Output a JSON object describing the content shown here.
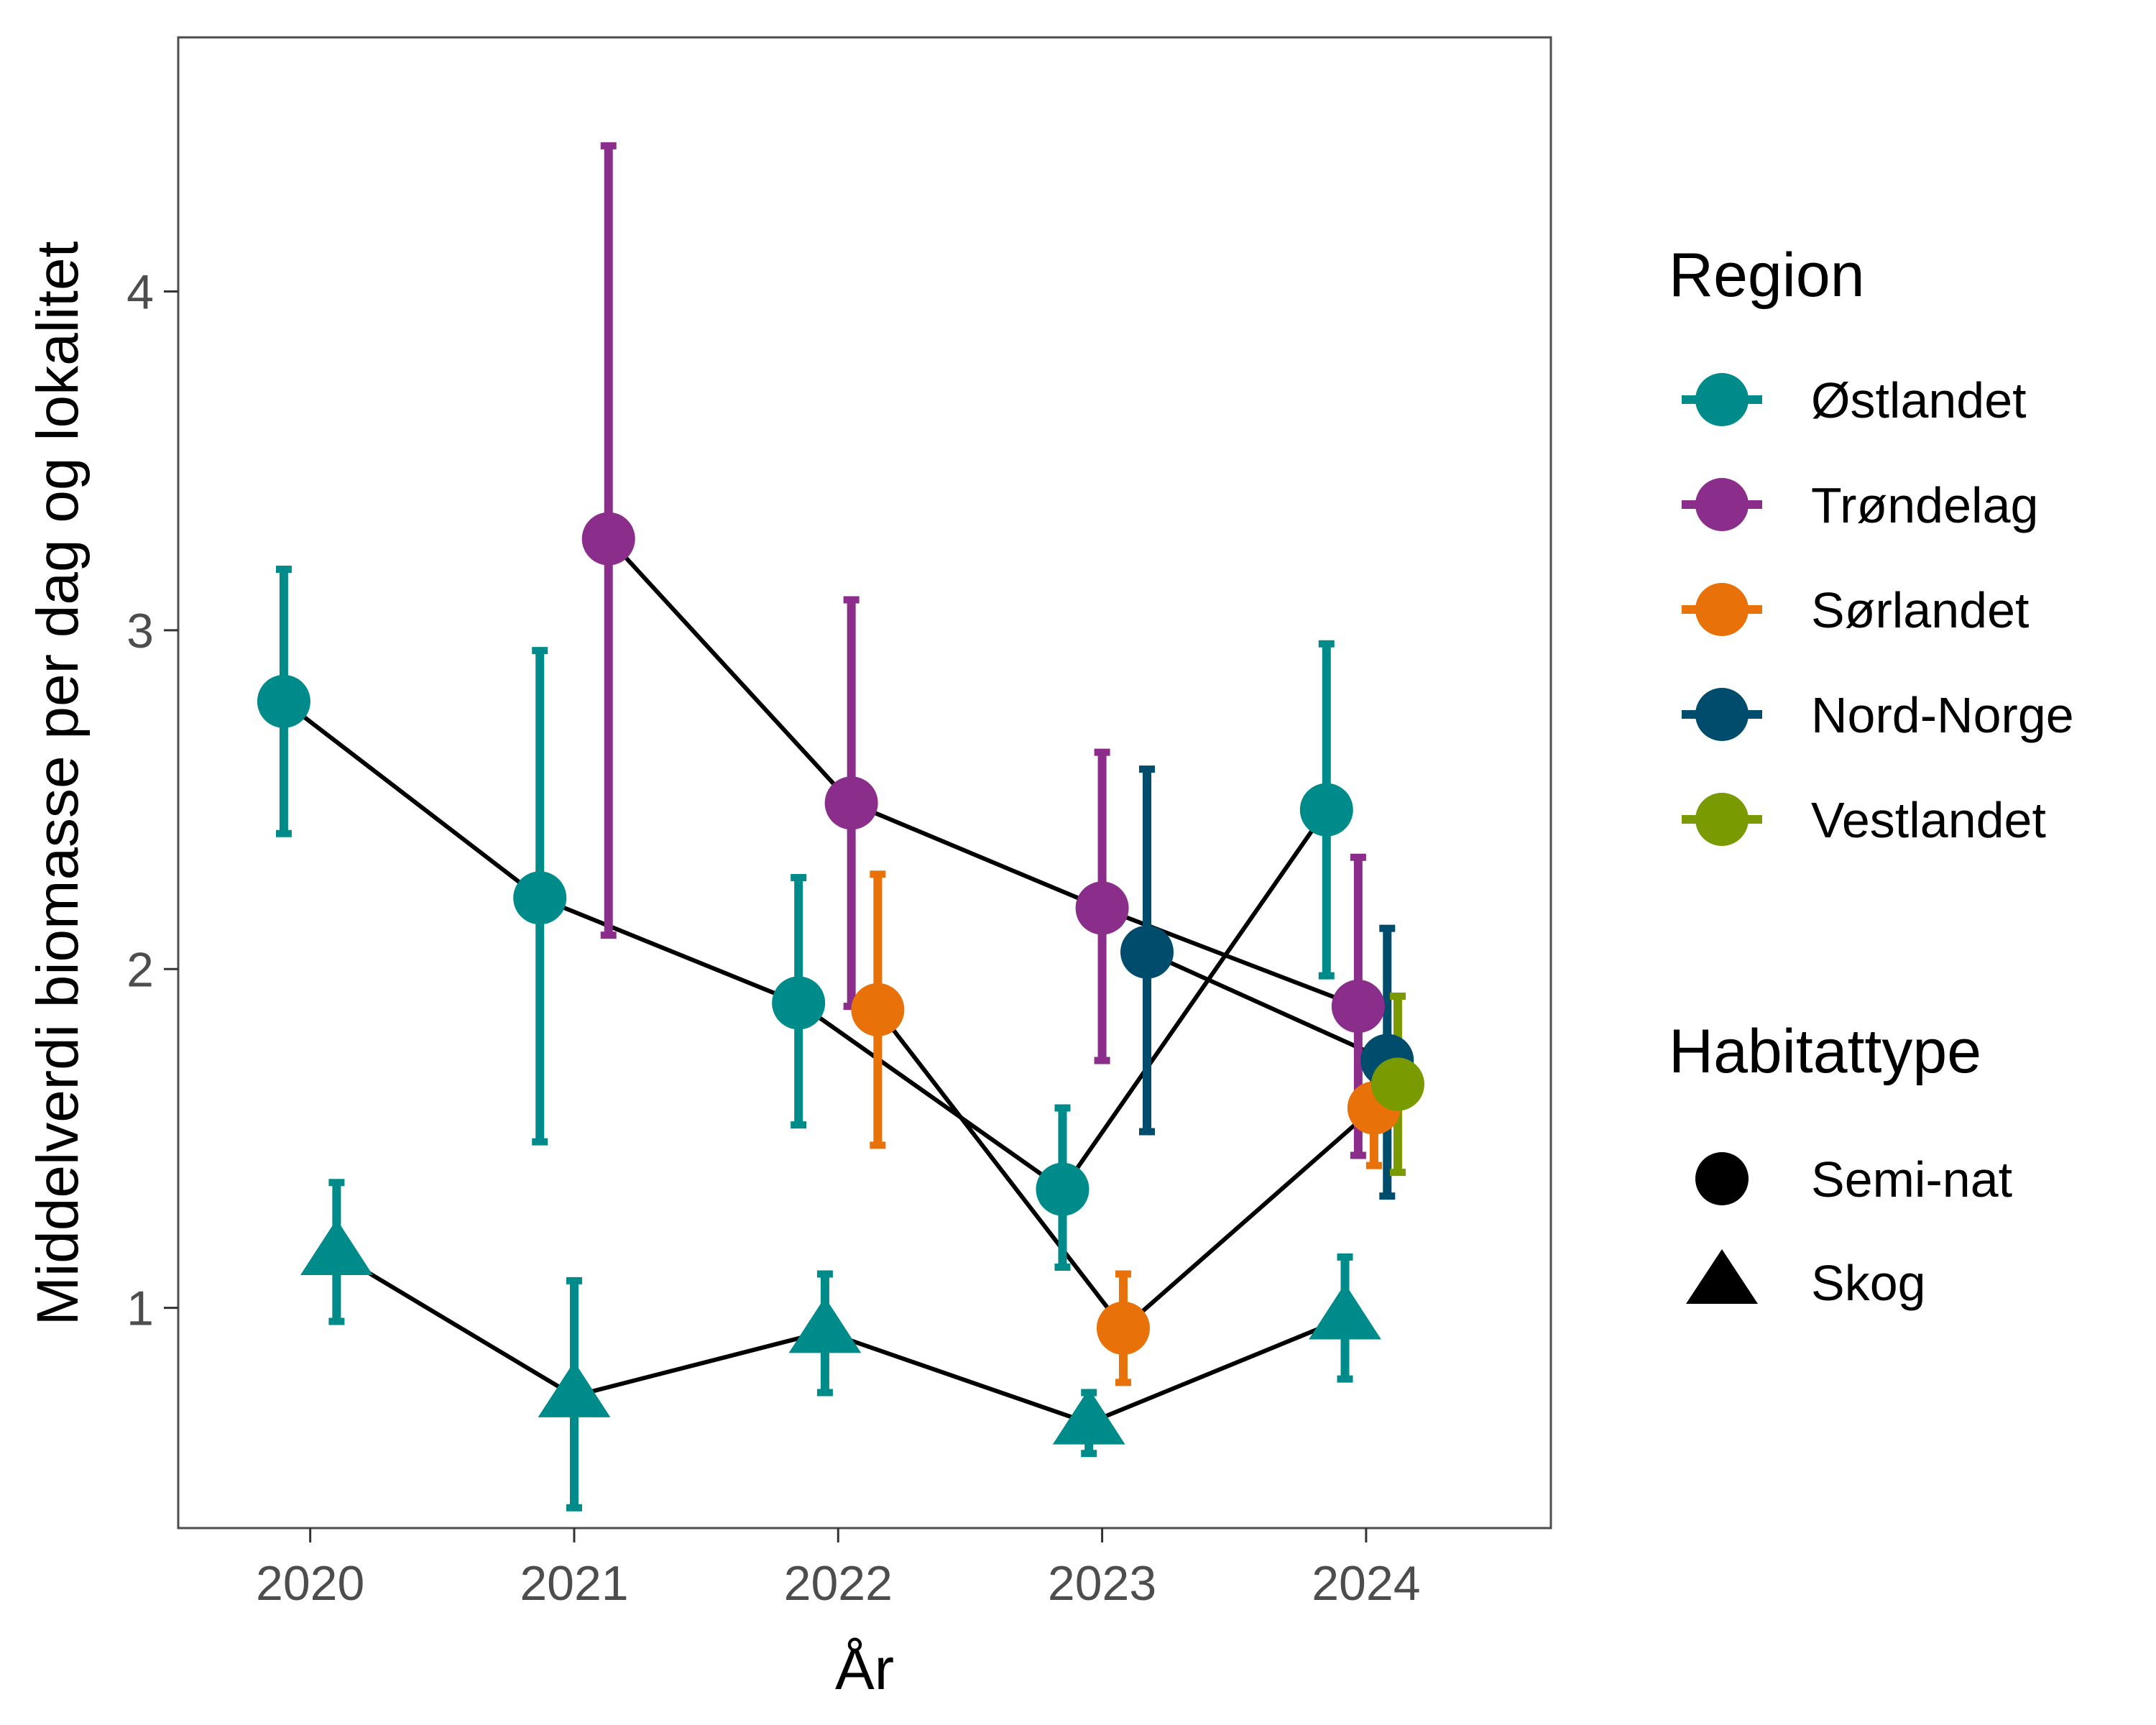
{
  "chart_data": {
    "type": "scatter",
    "xlabel": "År",
    "ylabel": "Middelverdi biomasse per dag og lokalitet",
    "xlim": [
      2019.5,
      2024.7
    ],
    "ylim": [
      0.35,
      4.75
    ],
    "x_ticks": [
      "2020",
      "2021",
      "2022",
      "2023",
      "2024"
    ],
    "y_ticks": [
      "1",
      "2",
      "3",
      "4"
    ],
    "grid": false,
    "error_bars": true,
    "trend_line_color": "#000000",
    "legend": {
      "position": "right",
      "region": {
        "title": "Region",
        "items": [
          {
            "label": "Østlandet",
            "color": "#008B8B"
          },
          {
            "label": "Trøndelag",
            "color": "#8B2E8B"
          },
          {
            "label": "Sørlandet",
            "color": "#E8710A"
          },
          {
            "label": "Nord-Norge",
            "color": "#004C6D"
          },
          {
            "label": "Vestlandet",
            "color": "#7A9A01"
          }
        ]
      },
      "habitat": {
        "title": "Habitattype",
        "items": [
          {
            "label": "Semi-nat",
            "shape": "circle"
          },
          {
            "label": "Skog",
            "shape": "triangle"
          }
        ]
      }
    },
    "series": [
      {
        "region": "Østlandet",
        "habitat": "Semi-nat",
        "color": "#008B8B",
        "shape": "circle",
        "points": [
          {
            "x": 2020,
            "y": 2.79,
            "low": 2.4,
            "high": 3.18
          },
          {
            "x": 2021,
            "y": 2.21,
            "low": 1.49,
            "high": 2.94
          },
          {
            "x": 2022,
            "y": 1.9,
            "low": 1.54,
            "high": 2.27
          },
          {
            "x": 2023,
            "y": 1.35,
            "low": 1.12,
            "high": 1.59
          },
          {
            "x": 2024,
            "y": 2.47,
            "low": 1.98,
            "high": 2.96
          }
        ]
      },
      {
        "region": "Østlandet",
        "habitat": "Skog",
        "color": "#008B8B",
        "shape": "triangle",
        "points": [
          {
            "x": 2020,
            "y": 1.16,
            "low": 0.96,
            "high": 1.37
          },
          {
            "x": 2021,
            "y": 0.74,
            "low": 0.41,
            "high": 1.08
          },
          {
            "x": 2022,
            "y": 0.93,
            "low": 0.75,
            "high": 1.1
          },
          {
            "x": 2023,
            "y": 0.66,
            "low": 0.57,
            "high": 0.75
          },
          {
            "x": 2024,
            "y": 0.97,
            "low": 0.79,
            "high": 1.15
          }
        ]
      },
      {
        "region": "Trøndelag",
        "habitat": "Semi-nat",
        "color": "#8B2E8B",
        "shape": "circle",
        "points": [
          {
            "x": 2021,
            "y": 3.27,
            "low": 2.1,
            "high": 4.43
          },
          {
            "x": 2022,
            "y": 2.49,
            "low": 1.89,
            "high": 3.09
          },
          {
            "x": 2023,
            "y": 2.18,
            "low": 1.73,
            "high": 2.64
          },
          {
            "x": 2024,
            "y": 1.89,
            "low": 1.45,
            "high": 2.33
          }
        ]
      },
      {
        "region": "Sørlandet",
        "habitat": "Semi-nat",
        "color": "#E8710A",
        "shape": "circle",
        "points": [
          {
            "x": 2022,
            "y": 1.88,
            "low": 1.48,
            "high": 2.28
          },
          {
            "x": 2023,
            "y": 0.94,
            "low": 0.78,
            "high": 1.1
          },
          {
            "x": 2024,
            "y": 1.59,
            "low": 1.42,
            "high": 1.76
          }
        ]
      },
      {
        "region": "Nord-Norge",
        "habitat": "Semi-nat",
        "color": "#004C6D",
        "shape": "circle",
        "points": [
          {
            "x": 2023,
            "y": 2.05,
            "low": 1.52,
            "high": 2.59
          },
          {
            "x": 2024,
            "y": 1.73,
            "low": 1.33,
            "high": 2.12
          }
        ]
      },
      {
        "region": "Vestlandet",
        "habitat": "Semi-nat",
        "color": "#7A9A01",
        "shape": "circle",
        "points": [
          {
            "x": 2024,
            "y": 1.66,
            "low": 1.4,
            "high": 1.92
          }
        ]
      }
    ]
  }
}
